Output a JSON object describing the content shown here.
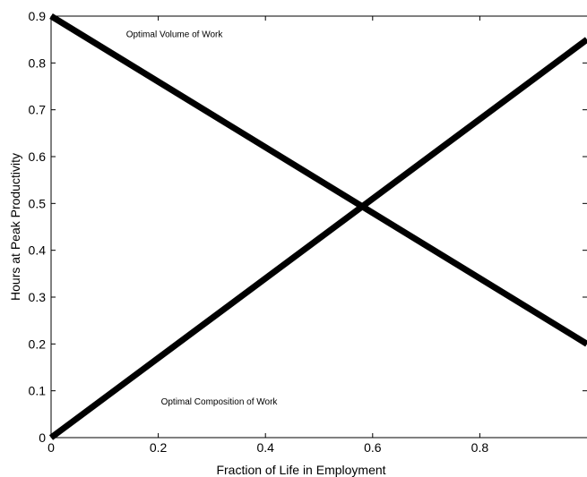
{
  "chart_data": {
    "type": "line",
    "title": "",
    "xlabel": "Fraction of Life in Employment",
    "ylabel": "Hours at Peak Productivity",
    "xlim": [
      0,
      1
    ],
    "ylim": [
      0,
      0.9
    ],
    "xticks": [
      0,
      0.2,
      0.4,
      0.6,
      0.8
    ],
    "xtick_labels": [
      "0",
      "0.2",
      "0.4",
      "0.6",
      "0.8"
    ],
    "yticks": [
      0,
      0.1,
      0.2,
      0.3,
      0.4,
      0.5,
      0.6,
      0.7,
      0.8,
      0.9
    ],
    "ytick_labels": [
      "0",
      "0.1",
      "0.2",
      "0.3",
      "0.4",
      "0.5",
      "0.6",
      "0.7",
      "0.8",
      "0.9"
    ],
    "grid": false,
    "series": [
      {
        "x": [
          0,
          1
        ],
        "y": [
          0.9,
          0.2
        ]
      },
      {
        "x": [
          0,
          1
        ],
        "y": [
          0.0,
          0.85
        ]
      }
    ],
    "annotations": [
      {
        "text": "Optimal Volume of Work",
        "x": 0.14,
        "y": 0.855
      },
      {
        "text": "Optimal Composition of Work",
        "x": 0.205,
        "y": 0.071
      }
    ],
    "colors": {
      "line": "#000000",
      "axis": "#000000",
      "background": "#ffffff"
    }
  }
}
